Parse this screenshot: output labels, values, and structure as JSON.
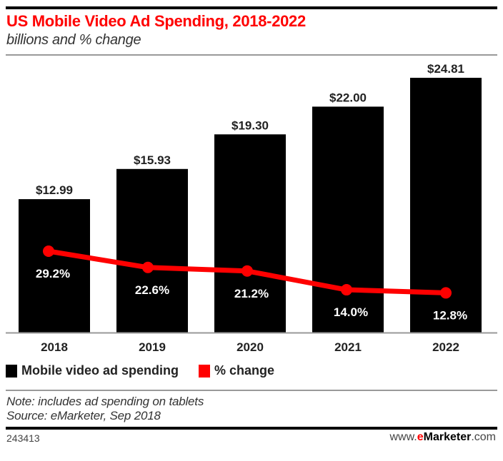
{
  "chart_data": {
    "type": "bar",
    "title": "US Mobile Video Ad Spending, 2018-2022",
    "subtitle": "billions and % change",
    "xlabel": "",
    "ylabel": "",
    "categories": [
      "2018",
      "2019",
      "2020",
      "2021",
      "2022"
    ],
    "ylim": [
      0,
      24.81
    ],
    "grid": false,
    "legend_position": "bottom-left",
    "series": [
      {
        "name": "Mobile video ad spending",
        "type": "bar",
        "color": "#000000",
        "values": [
          12.99,
          15.93,
          19.3,
          22.0,
          24.81
        ],
        "labels": [
          "$12.99",
          "$15.93",
          "$19.30",
          "$22.00",
          "$24.81"
        ]
      },
      {
        "name": "% change",
        "type": "line",
        "color": "#ff0000",
        "values": [
          29.2,
          22.6,
          21.2,
          14.0,
          12.8
        ],
        "labels": [
          "29.2%",
          "22.6%",
          "21.2%",
          "14.0%",
          "12.8%"
        ]
      }
    ]
  },
  "legend": {
    "items": [
      {
        "label": "Mobile video ad spending",
        "color": "#000000"
      },
      {
        "label": "% change",
        "color": "#ff0000"
      }
    ]
  },
  "footer": {
    "note": "Note: includes ad spending on tablets",
    "source": "Source: eMarketer, Sep 2018",
    "chart_id": "243413",
    "brand_prefix": "www.",
    "brand_e": "e",
    "brand_name": "Marketer",
    "brand_suffix": ".com"
  },
  "colors": {
    "title": "#ff0000",
    "bar": "#000000",
    "line": "#ff0000"
  }
}
